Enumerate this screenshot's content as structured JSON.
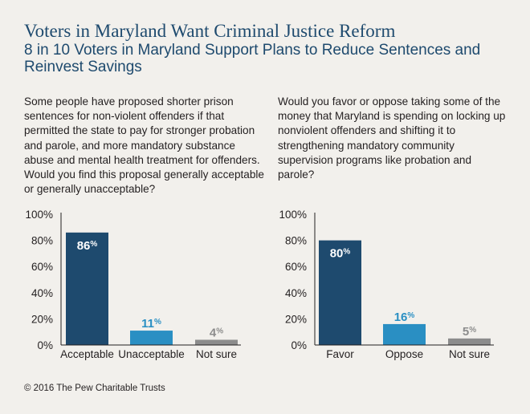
{
  "title": "Voters in Maryland Want Criminal Justice Reform",
  "subtitle": "8 in 10 Voters in Maryland Support Plans to Reduce Sentences and Reinvest Savings",
  "footer": "© 2016 The Pew Charitable Trusts",
  "colors": {
    "bar_dark": "#1e4a6e",
    "bar_light": "#2a8fc3",
    "bar_gray": "#8c8c8c"
  },
  "chart_data": [
    {
      "type": "bar",
      "question": "Some people have proposed shorter prison sentences for non-violent offenders if that permitted the state to pay for stronger probation and parole, and more mandatory substance abuse and mental health treatment for offenders. Would you find this proposal generally acceptable or generally unacceptable?",
      "categories": [
        "Acceptable",
        "Unacceptable",
        "Not sure"
      ],
      "values": [
        86,
        11,
        4
      ],
      "value_labels": [
        "86",
        "11",
        "4"
      ],
      "value_suffix": "%",
      "bar_colors": [
        "#1e4a6e",
        "#2a8fc3",
        "#8c8c8c"
      ],
      "label_colors": [
        "#ffffff",
        "#2a8fc3",
        "#8c8c8c"
      ],
      "yticks": [
        "0%",
        "20%",
        "40%",
        "60%",
        "80%",
        "100%"
      ],
      "ylim": [
        0,
        100
      ],
      "grid": false
    },
    {
      "type": "bar",
      "question": "Would you favor or oppose taking some of the money that Maryland is spending on locking up nonviolent offenders and shifting it to strengthening mandatory community supervision programs like probation and parole?",
      "categories": [
        "Favor",
        "Oppose",
        "Not sure"
      ],
      "values": [
        80,
        16,
        5
      ],
      "value_labels": [
        "80",
        "16",
        "5"
      ],
      "value_suffix": "%",
      "bar_colors": [
        "#1e4a6e",
        "#2a8fc3",
        "#8c8c8c"
      ],
      "label_colors": [
        "#ffffff",
        "#2a8fc3",
        "#8c8c8c"
      ],
      "yticks": [
        "0%",
        "20%",
        "40%",
        "60%",
        "80%",
        "100%"
      ],
      "ylim": [
        0,
        100
      ],
      "grid": false
    }
  ]
}
